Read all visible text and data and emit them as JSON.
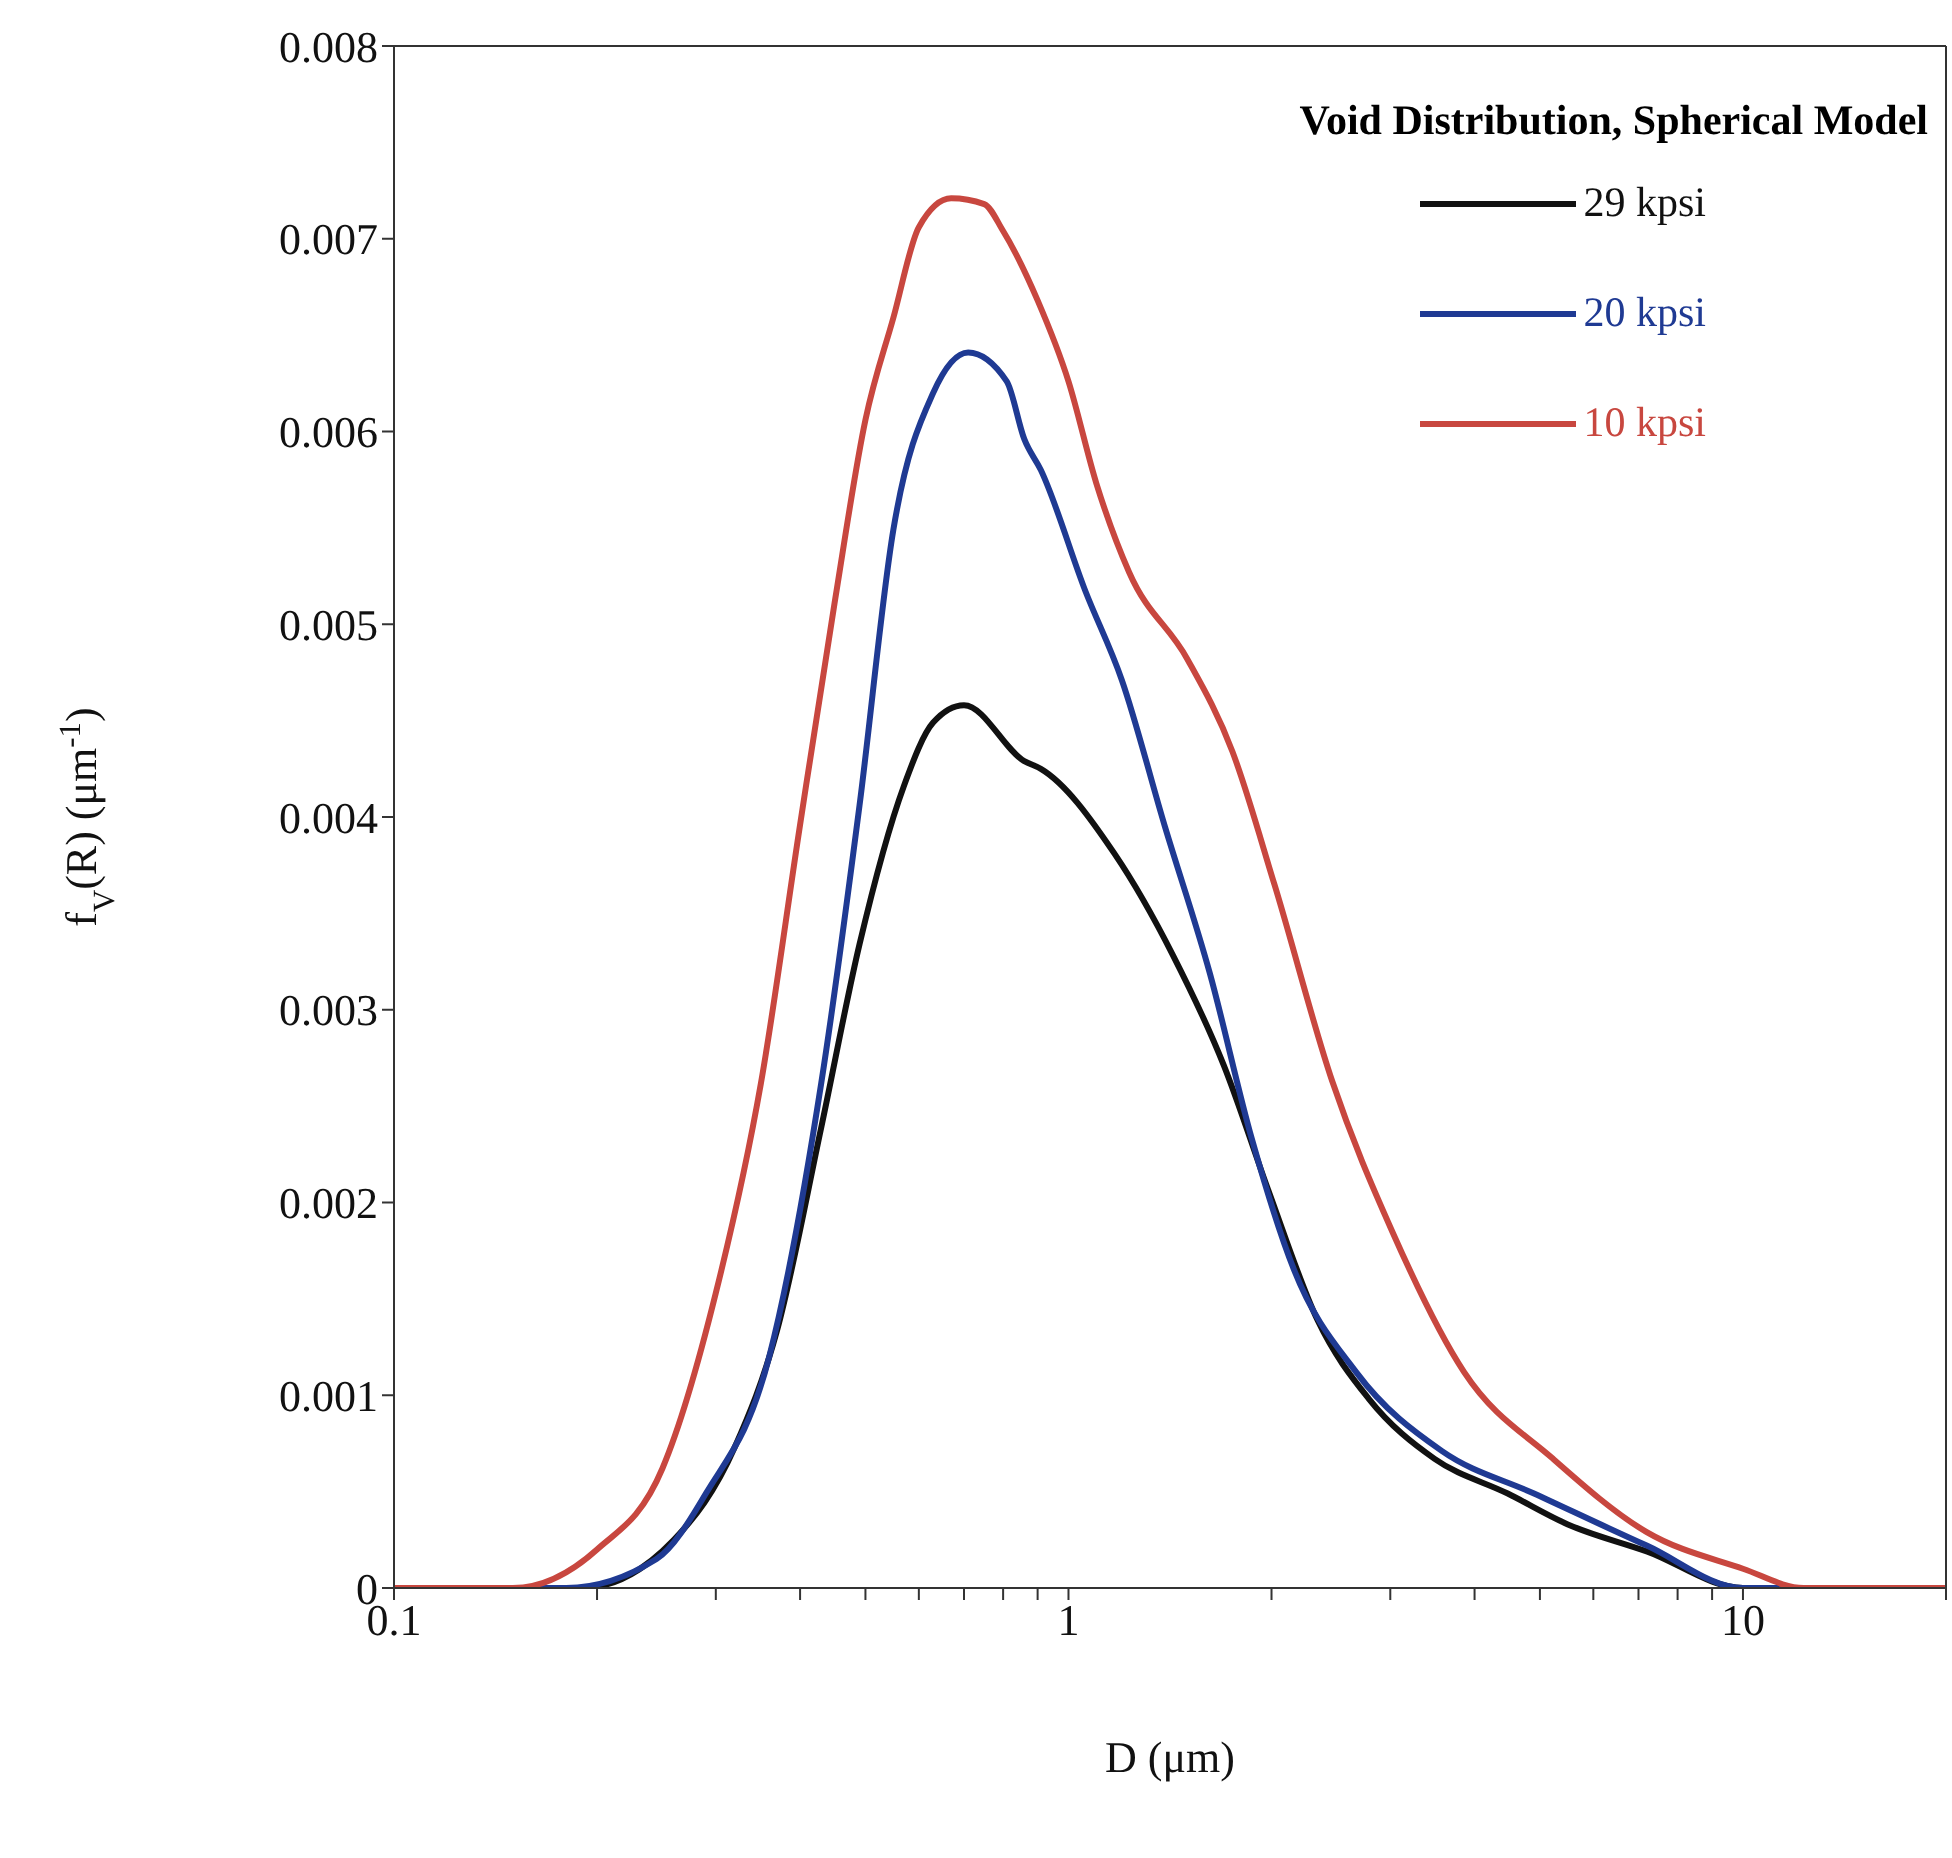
{
  "chart_data": {
    "type": "line",
    "xlabel": "D (μm)",
    "ylabel": "f$_{V}$(R) (μm$^{-1}$)",
    "legend_title": "Void Distribution, Spherical Model",
    "log": "x",
    "legend": "top right",
    "marker": "none",
    "line_style": "solid",
    "xlim": [
      0.1,
      20
    ],
    "xticks": [
      0.1,
      {
        "value": 0.2,
        "label": null
      },
      {
        "value": 0.3,
        "label": null
      },
      {
        "value": 0.4,
        "label": null
      },
      {
        "value": 0.5,
        "label": null
      },
      {
        "value": 0.6,
        "label": null
      },
      {
        "value": 0.7,
        "label": null
      },
      {
        "value": 0.8,
        "label": null
      },
      {
        "value": 0.9,
        "label": null
      },
      1,
      {
        "value": 2,
        "label": null
      },
      {
        "value": 3,
        "label": null
      },
      {
        "value": 4,
        "label": null
      },
      {
        "value": 5,
        "label": null
      },
      {
        "value": 6,
        "label": null
      },
      {
        "value": 7,
        "label": null
      },
      {
        "value": 8,
        "label": null
      },
      {
        "value": 9,
        "label": null
      },
      10,
      {
        "value": 20,
        "label": null
      }
    ],
    "ylim": [
      0,
      0.008
    ],
    "yticks": [
      0,
      0.001,
      0.002,
      0.003,
      0.004,
      0.005,
      0.006,
      0.007,
      0.008
    ],
    "series": [
      {
        "name": "29 kpsi",
        "color": "#111111",
        "x": [
          0.1,
          0.15,
          0.19,
          0.26,
          0.32,
          0.37,
          0.43,
          0.49,
          0.57,
          0.63,
          0.7,
          0.86,
          0.91,
          1.17,
          1.43,
          1.7,
          1.98,
          2.34,
          2.79,
          3.49,
          4.48,
          5.5,
          7.2,
          10,
          14,
          20
        ],
        "values": [
          0,
          0,
          0,
          0.00025,
          0.00073,
          0.00134,
          0.00239,
          0.00334,
          0.00416,
          0.00449,
          0.00458,
          0.00429,
          0.00425,
          0.00381,
          0.00328,
          0.00271,
          0.00206,
          0.00139,
          0.00098,
          0.00067,
          0.00049,
          0.00033,
          0.00019,
          0,
          0,
          0
        ]
      },
      {
        "name": "20 kpsi",
        "color": "#1f3a93",
        "x": [
          0.1,
          0.15,
          0.18,
          0.245,
          0.29,
          0.36,
          0.43,
          0.49,
          0.55,
          0.63,
          0.71,
          0.81,
          0.86,
          0.91,
          1.06,
          1.2,
          1.39,
          1.62,
          1.87,
          2.16,
          2.67,
          3.58,
          4.9,
          7.2,
          10,
          14,
          20
        ],
        "values": [
          0,
          0,
          0,
          0.00015,
          0.00049,
          0.0012,
          0.00262,
          0.00406,
          0.00549,
          0.0062,
          0.00641,
          0.00626,
          0.00596,
          0.0058,
          0.00517,
          0.00471,
          0.00395,
          0.00319,
          0.00233,
          0.00165,
          0.00112,
          0.00071,
          0.00049,
          0.00022,
          0,
          0,
          0
        ]
      },
      {
        "name": "10 kpsi",
        "color": "#c8473f",
        "x": [
          0.1,
          0.15,
          0.2,
          0.25,
          0.3,
          0.35,
          0.4,
          0.45,
          0.5,
          0.55,
          0.6,
          0.67,
          0.75,
          0.8,
          0.9,
          1,
          1.1,
          1.23,
          1.5,
          1.75,
          2.02,
          2.46,
          3.02,
          3.86,
          5.23,
          7.2,
          10,
          12.3,
          20
        ],
        "values": [
          0,
          0,
          0.0002,
          0.00062,
          0.00153,
          0.00262,
          0.00396,
          0.00511,
          0.00606,
          0.00659,
          0.00706,
          0.00721,
          0.00718,
          0.00704,
          0.00668,
          0.00626,
          0.00573,
          0.00527,
          0.00482,
          0.00434,
          0.00365,
          0.00263,
          0.00185,
          0.00112,
          0.00067,
          0.00029,
          0.0001,
          0,
          0
        ]
      }
    ]
  }
}
